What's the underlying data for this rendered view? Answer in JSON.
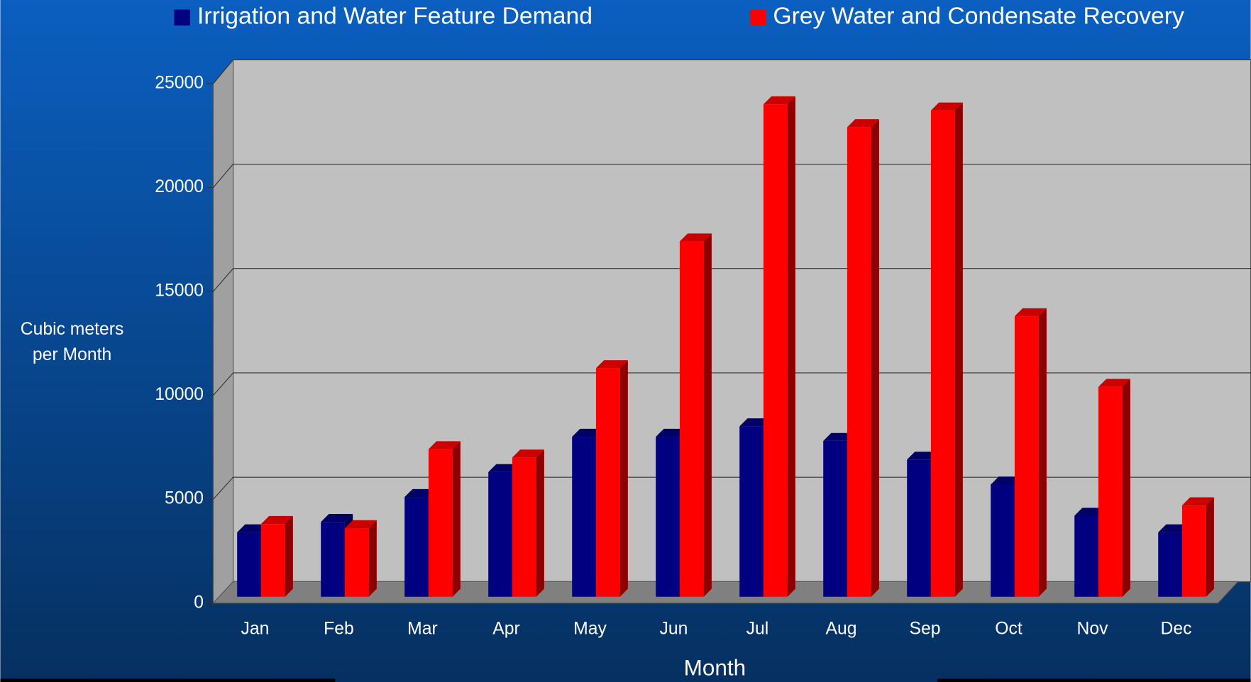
{
  "chart_data": {
    "type": "bar3d",
    "y_label": [
      "Cubic meters",
      "per Month"
    ],
    "x_label": "Month",
    "categories": [
      "Jan",
      "Feb",
      "Mar",
      "Apr",
      "May",
      "Jun",
      "Jul",
      "Aug",
      "Sep",
      "Oct",
      "Nov",
      "Dec"
    ],
    "series": [
      {
        "name": "Irrigation and Water Feature Demand",
        "color": "#000080",
        "values": [
          3100,
          3600,
          4800,
          6000,
          7700,
          7700,
          8200,
          7500,
          6600,
          5400,
          3900,
          3100
        ]
      },
      {
        "name": "Grey Water and Condensate Recovery",
        "color": "#ff0000",
        "values": [
          3500,
          3300,
          7100,
          6700,
          11000,
          17100,
          23700,
          22600,
          23400,
          13500,
          10100,
          4400
        ]
      }
    ],
    "ylim": [
      0,
      25000
    ],
    "yticks": [
      0,
      5000,
      10000,
      15000,
      20000,
      25000
    ],
    "grid": true,
    "legend": "top"
  }
}
